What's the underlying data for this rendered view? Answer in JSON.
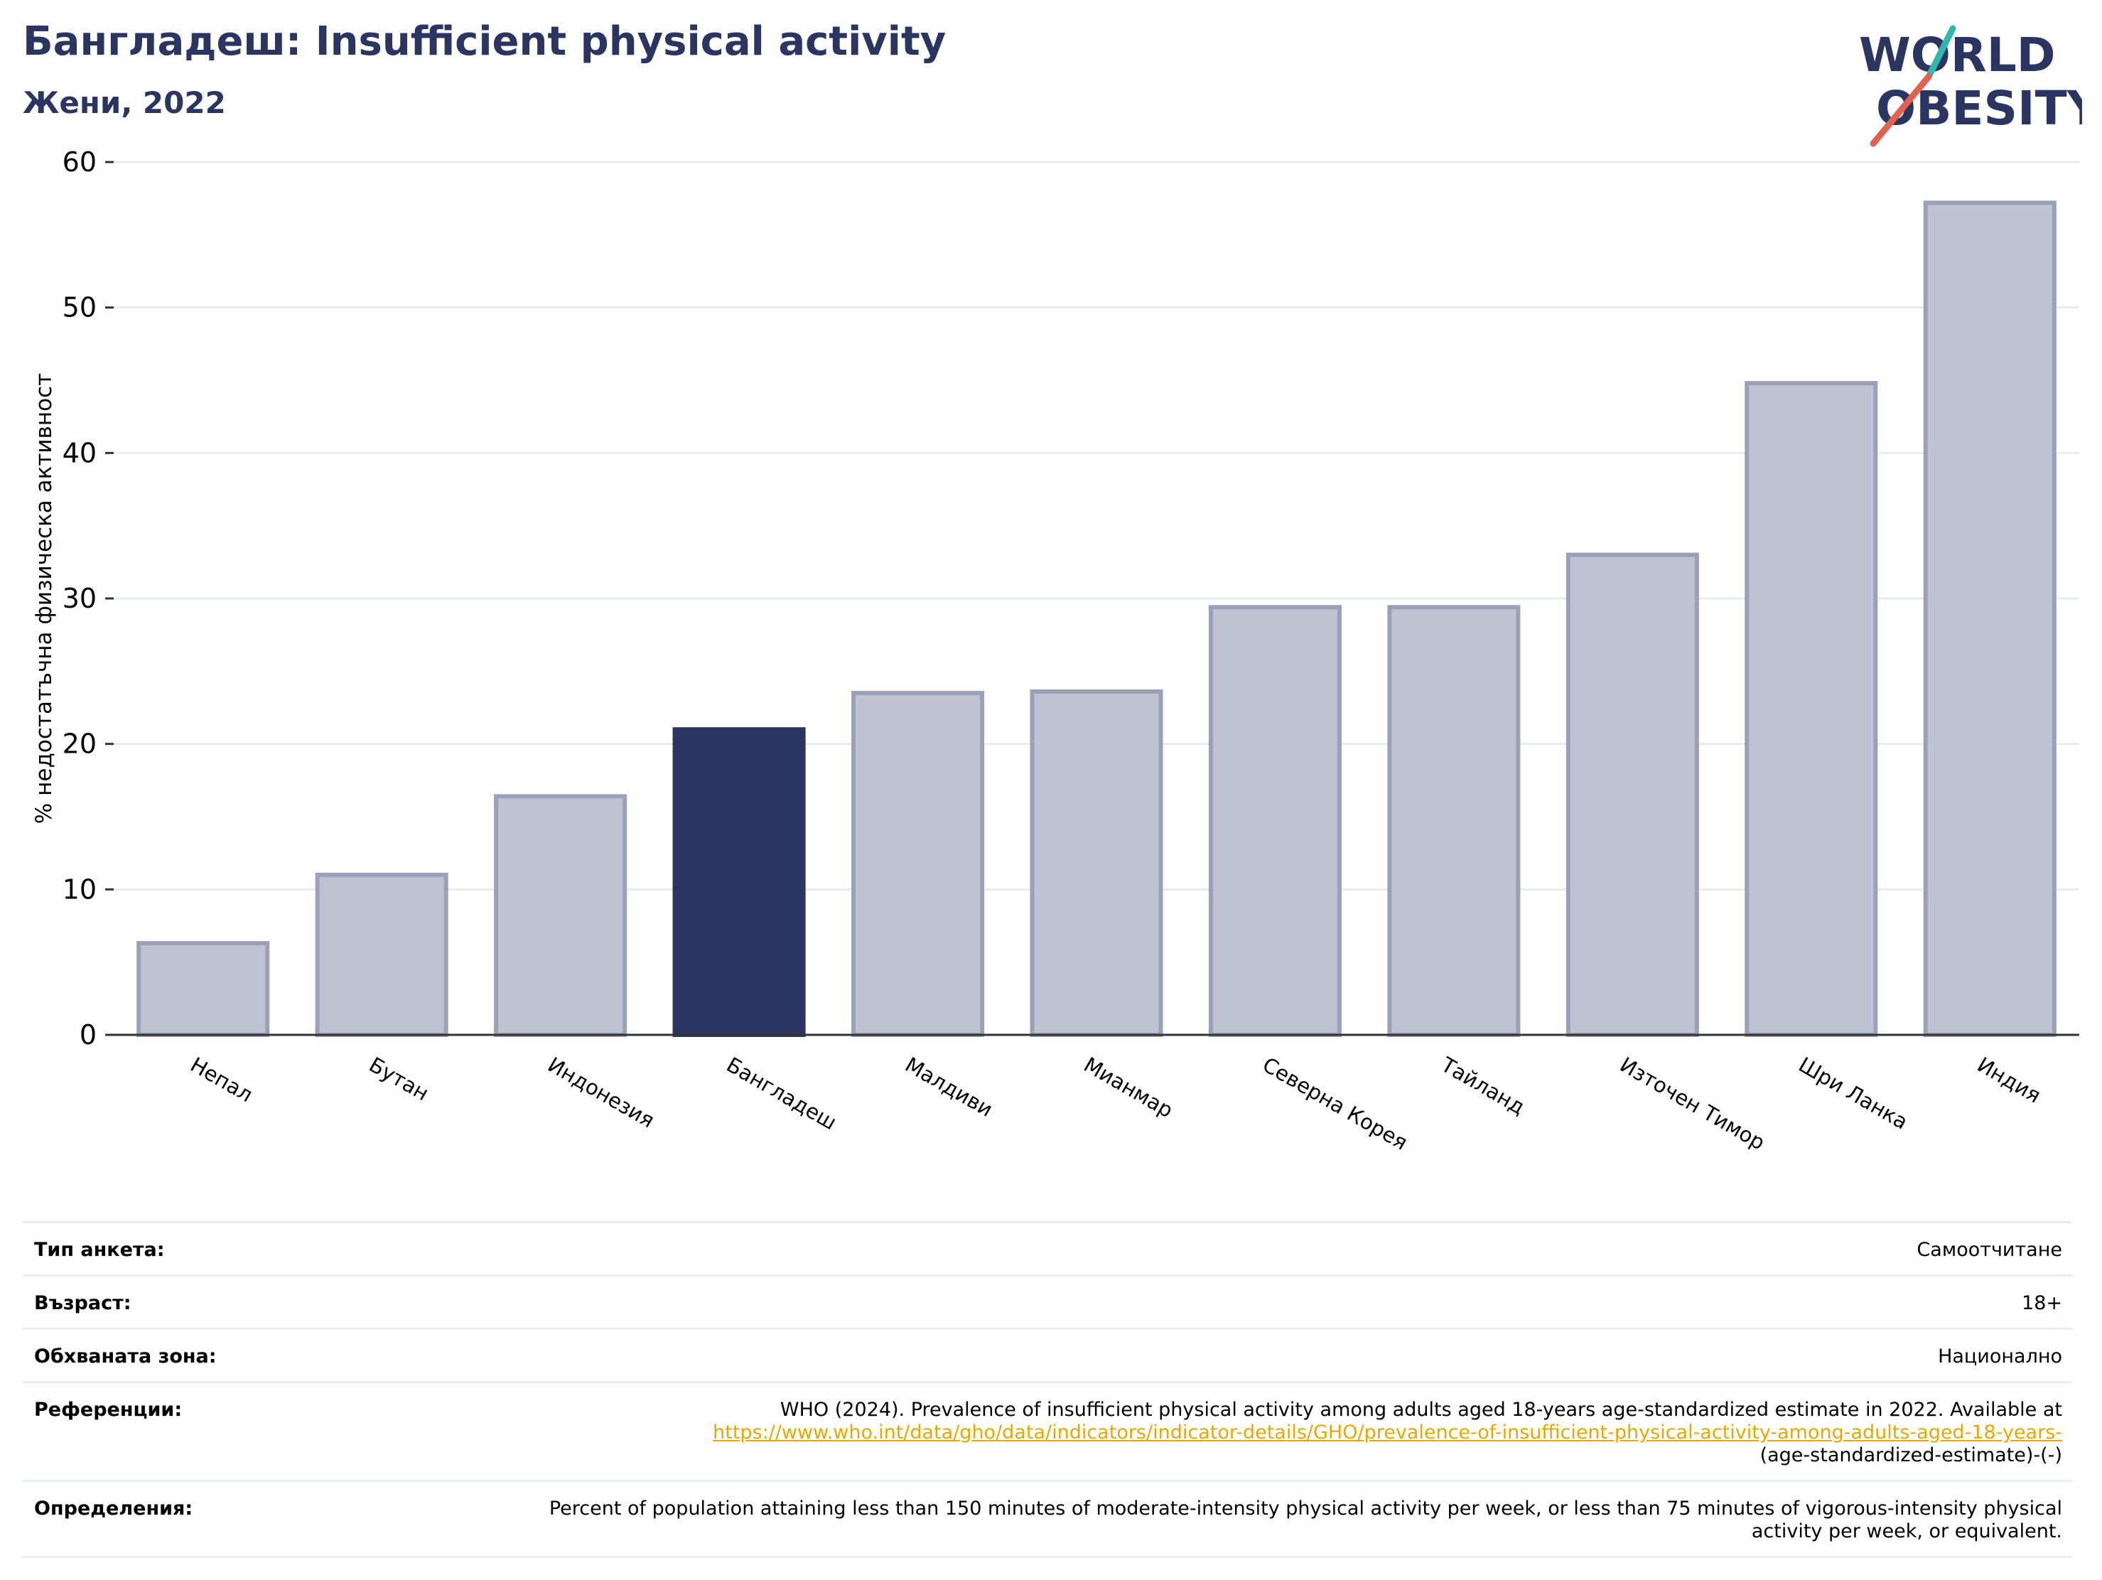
{
  "header": {
    "title": "Бангладеш: Insufficient physical activity",
    "subtitle": "Жени, 2022"
  },
  "logo": {
    "line1": "WORLD",
    "line2": "OBESITY"
  },
  "chart_data": {
    "type": "bar",
    "title": "Бангладеш: Insufficient physical activity",
    "subtitle": "Жени, 2022",
    "ylabel": "% недостатъчна физическа активност",
    "xlabel": "",
    "ylim": [
      0,
      60
    ],
    "yticks": [
      0,
      10,
      20,
      30,
      40,
      50,
      60
    ],
    "grid": true,
    "categories": [
      "Непал",
      "Бутан",
      "Индонезия",
      "Бангладеш",
      "Малдиви",
      "Мианмар",
      "Северна Корея",
      "Тайланд",
      "Източен Тимор",
      "Шри Ланка",
      "Индия"
    ],
    "values": [
      6.3,
      11.0,
      16.4,
      21.0,
      23.5,
      23.6,
      29.4,
      29.4,
      33.0,
      44.8,
      57.2
    ],
    "highlight": "Бангладеш",
    "colors": {
      "bar": "#bfc2d0",
      "bar_edge": "#9aa0b8",
      "highlight": "#2b3562",
      "grid": "#eaebf0",
      "axis": "#333333"
    }
  },
  "meta": {
    "rows": [
      {
        "key": "Тип анкета:",
        "value": "Самоотчитане"
      },
      {
        "key": "Възраст:",
        "value": "18+"
      },
      {
        "key": "Обхваната зона:",
        "value": "Национално"
      },
      {
        "key": "Референции:",
        "value": "WHO (2024). Prevalence of insufficient physical activity among adults aged 18-years age-standardized estimate in 2022. Available at",
        "link": "https://www.who.int/data/gho/data/indicators/indicator-details/GHO/prevalence-of-insufficient-physical-activity-among-adults-aged-18-years-",
        "value_tail": "(age-standardized-estimate)-(-)"
      },
      {
        "key": "Определения:",
        "value": "Percent of population attaining less than 150 minutes of moderate-intensity physical activity per week, or less than 75 minutes of vigorous-intensity physical activity per week, or equivalent."
      }
    ]
  }
}
